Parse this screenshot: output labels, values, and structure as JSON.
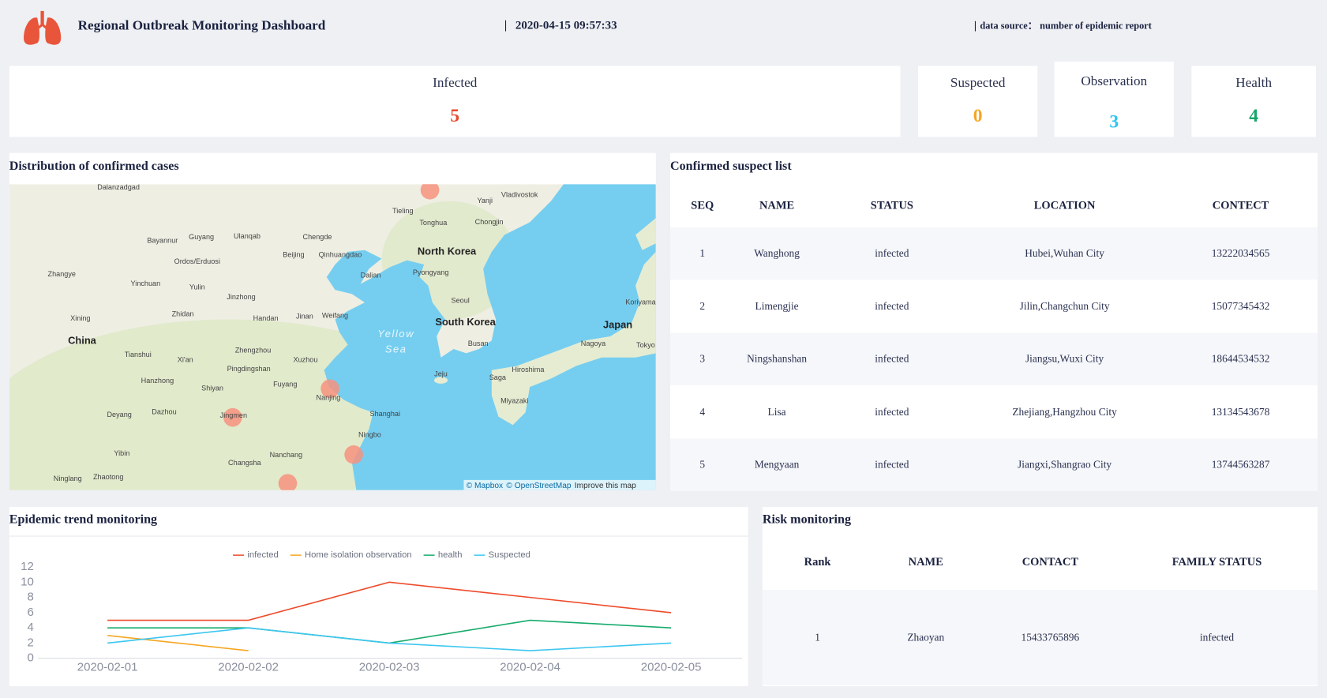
{
  "header": {
    "title": "Regional Outbreak Monitoring Dashboard",
    "timestamp": "2020-04-15 09:57:33",
    "source_label": "data source：",
    "source": "number of epidemic report"
  },
  "stats": [
    {
      "label": "Infected",
      "value": 5,
      "color": "#e8482f"
    },
    {
      "label": "Suspected",
      "value": 0,
      "color": "#f5a623"
    },
    {
      "label": "Observation",
      "value": 3,
      "color": "#2ec4f0"
    },
    {
      "label": "Health",
      "value": 4,
      "color": "#16a56a"
    }
  ],
  "map": {
    "title": "Distribution of confirmed cases",
    "labels": [
      "Dalanzadgad",
      "Tieling",
      "Yanji",
      "Vladivostok",
      "Tonghua",
      "Chongjin",
      "Guyang",
      "Ulanqab",
      "Chengde",
      "Bayannur",
      "Beijing",
      "Qinhuangdao",
      "North Korea",
      "Ordos/Erduosi",
      "Dalian",
      "Pyongyang",
      "Zhangye",
      "Yinchuan",
      "Yulin",
      "Jinzhong",
      "Seoul",
      "Koriyama",
      "Xining",
      "Zhidan",
      "Handan",
      "Jinan",
      "Weifang",
      "South Korea",
      "Japan",
      "China",
      "Yellow",
      "Sea",
      "Busan",
      "Nagoya",
      "Tokyo",
      "Tianshui",
      "Xi'an",
      "Zhengzhou",
      "Xuzhou",
      "Hiroshima",
      "Pingdingshan",
      "Jeju",
      "Hanzhong",
      "Shiyan",
      "Fuyang",
      "Nanjing",
      "Saga",
      "Miyazaki",
      "Deyang",
      "Dazhou",
      "Jingmen",
      "Shanghai",
      "Ningbo",
      "Yibin",
      "Nanchang",
      "Changsha",
      "Ninglang",
      "Zhaotong"
    ],
    "attribution": [
      "© Mapbox",
      "© OpenStreetMap",
      "Improve this map"
    ]
  },
  "suspect_list": {
    "title": "Confirmed suspect list",
    "columns": [
      "SEQ",
      "NAME",
      "STATUS",
      "LOCATION",
      "CONTECT"
    ],
    "rows": [
      [
        1,
        "Wanghong",
        "infected",
        "Hubei,Wuhan City",
        "13222034565"
      ],
      [
        2,
        "Limengjie",
        "infected",
        "Jilin,Changchun City",
        "15077345432"
      ],
      [
        3,
        "Ningshanshan",
        "infected",
        "Jiangsu,Wuxi City",
        "18644534532"
      ],
      [
        4,
        "Lisa",
        "infected",
        "Zhejiang,Hangzhou City",
        "13134543678"
      ],
      [
        5,
        "Mengyaan",
        "infected",
        "Jiangxi,Shangrao City",
        "13744563287"
      ]
    ]
  },
  "trend": {
    "title": "Epidemic trend monitoring",
    "chart_data": {
      "type": "line",
      "categories": [
        "2020-02-01",
        "2020-02-02",
        "2020-02-03",
        "2020-02-04",
        "2020-02-05"
      ],
      "series": [
        {
          "name": "infected",
          "color": "#ee4b2b",
          "values": [
            5,
            5,
            10,
            8,
            6
          ]
        },
        {
          "name": "Home isolation observation",
          "color": "#f5a623",
          "values": [
            3,
            1,
            null,
            null,
            null
          ]
        },
        {
          "name": "health",
          "color": "#17ab6c",
          "values": [
            4,
            4,
            2,
            5,
            4
          ]
        },
        {
          "name": "Suspected",
          "color": "#3cc6f0",
          "values": [
            2,
            4,
            2,
            1,
            2
          ]
        }
      ],
      "ylim": [
        0,
        12
      ],
      "yticks": [
        0,
        2,
        4,
        6,
        8,
        10,
        12
      ],
      "legend": "top"
    }
  },
  "risk": {
    "title": "Risk monitoring",
    "columns": [
      "Rank",
      "NAME",
      "CONTACT",
      "FAMILY STATUS"
    ],
    "rows": [
      [
        1,
        "Zhaoyan",
        "15433765896",
        "infected"
      ]
    ]
  }
}
